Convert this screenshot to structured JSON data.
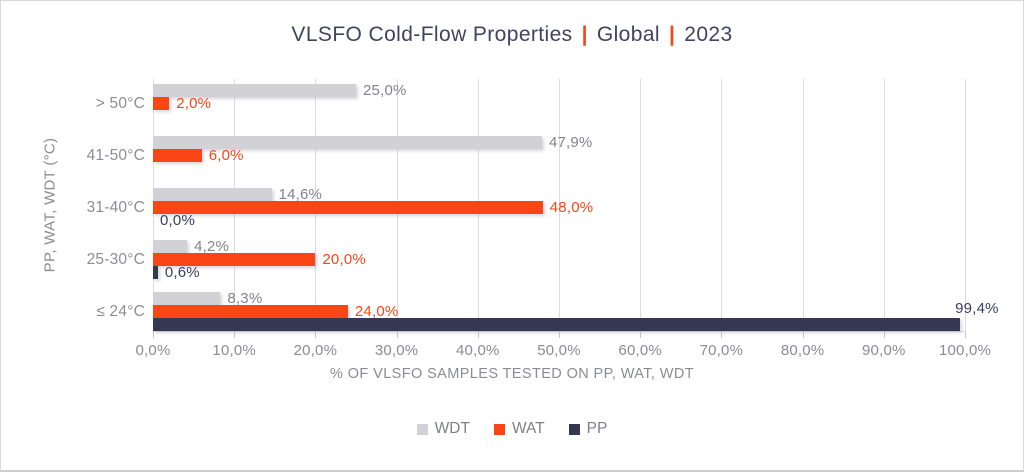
{
  "title": {
    "main": "VLSFO Cold-Flow Properties",
    "separator": "|",
    "region": "Global",
    "year": "2023"
  },
  "colors": {
    "accent_orange": "#FA4616",
    "navy": "#363752",
    "light_gray": "#D1D1D6",
    "title_navy": "#41425F"
  },
  "chart_data": {
    "type": "bar",
    "orientation": "horizontal",
    "title": "VLSFO Cold-Flow Properties | Global | 2023",
    "categories": [
      "> 50°C",
      "41-50°C",
      "31-40°C",
      "25-30°C",
      "≤ 24°C"
    ],
    "series": [
      {
        "name": "WDT",
        "color": "#D1D1D6",
        "label_color": "#828387",
        "values": [
          25.0,
          47.9,
          14.6,
          4.2,
          8.3
        ],
        "labels": [
          "25,0%",
          "47,9%",
          "14,6%",
          "4,2%",
          "8,3%"
        ],
        "label_placement": [
          "right",
          "right",
          "right",
          "right",
          "right"
        ]
      },
      {
        "name": "WAT",
        "color": "#FA4616",
        "label_color": "#FA4616",
        "values": [
          2.0,
          6.0,
          48.0,
          20.0,
          24.0
        ],
        "labels": [
          "2,0%",
          "6,0%",
          "48,0%",
          "20,0%",
          "24,0%"
        ],
        "label_placement": [
          "right",
          "right",
          "right",
          "right",
          "right"
        ]
      },
      {
        "name": "PP",
        "color": "#363752",
        "label_color": "#3C3D5F",
        "values": [
          null,
          null,
          0.0,
          0.6,
          99.4
        ],
        "labels": [
          null,
          null,
          "0,0%",
          "0,6%",
          "99,4%"
        ],
        "label_placement": [
          null,
          null,
          "right",
          "right",
          "above-end"
        ]
      }
    ],
    "xlabel": "% OF VLSFO SAMPLES TESTED ON PP, WAT, WDT",
    "ylabel": "PP, WAT, WDT (°C)",
    "xlim": [
      0,
      100
    ],
    "x_tick_step": 10,
    "x_ticks": [
      "0,0%",
      "10,0%",
      "20,0%",
      "30,0%",
      "40,0%",
      "50,0%",
      "60,0%",
      "70,0%",
      "80,0%",
      "90,0%",
      "100,0%"
    ],
    "grid": true,
    "gridline_color": "#DCDCDF",
    "legend_position": "bottom"
  }
}
